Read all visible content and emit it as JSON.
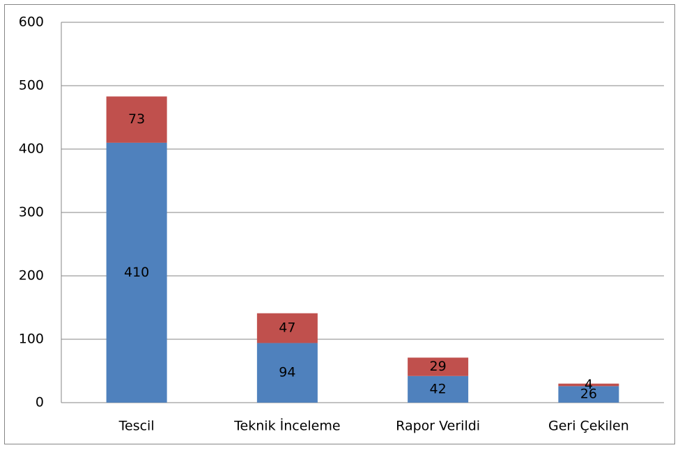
{
  "chart_data": {
    "type": "stacked_bar",
    "categories": [
      "Tescil",
      "Teknik İnceleme",
      "Rapor Verildi",
      "Geri Çekilen"
    ],
    "series": [
      {
        "color": "#4f81bd",
        "values": [
          410,
          94,
          42,
          26
        ]
      },
      {
        "color": "#c0504d",
        "values": [
          73,
          47,
          29,
          4
        ]
      }
    ],
    "ylim": [
      0,
      600
    ],
    "yticks": [
      0,
      100,
      200,
      300,
      400,
      500,
      600
    ],
    "grid": true
  }
}
